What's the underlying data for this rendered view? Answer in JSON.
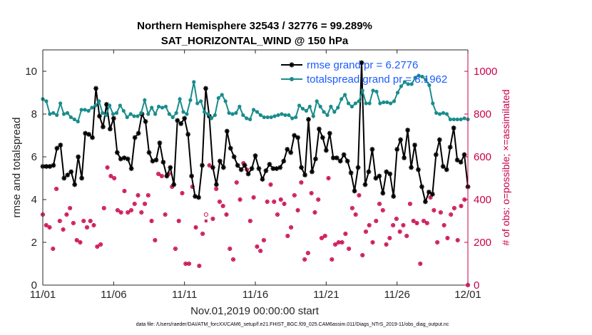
{
  "chart_data": {
    "type": "line",
    "title_line1": "Northern Hemisphere 32543 / 32776 = 99.289%",
    "title_line2": "SAT_HORIZONTAL_WIND @ 150 hPa",
    "xlabel": "Nov.01,2019 00:00:00 start",
    "ylabel_left": "rmse and totalspread",
    "ylabel_right": "# of obs: o=possible; ×=assimilated",
    "footnote": "data file: /Users/raeder/DAI/ATM_forcXX/CAM6_setup/f.e21.FHIST_BGC.f09_025.CAM6assim.011/Diags_NTrS_2019-11/obs_diag_output.nc",
    "x_ticks": [
      "11/01",
      "11/06",
      "11/11",
      "11/16",
      "11/21",
      "11/26",
      "12/01"
    ],
    "x_tick_days": [
      0,
      5,
      10,
      15,
      20,
      25,
      30
    ],
    "xlim": [
      0,
      30
    ],
    "ylim_left": [
      0,
      11
    ],
    "y_ticks_left": [
      "0",
      "2",
      "4",
      "6",
      "8",
      "10"
    ],
    "ylim_right": [
      0,
      1100
    ],
    "y_ticks_right": [
      "0",
      "200",
      "400",
      "600",
      "800",
      "1000"
    ],
    "series": [
      {
        "name": "rmse",
        "legend": "rmse grand pr = 6.2776",
        "color": "#000000",
        "axis": "left",
        "marker": "asterisk",
        "values": [
          5.55,
          5.55,
          5.55,
          5.6,
          6.4,
          6.55,
          5.0,
          5.15,
          5.3,
          4.7,
          6.0,
          5.0,
          7.1,
          7.05,
          6.9,
          9.2,
          7.9,
          7.4,
          8.45,
          7.3,
          7.8,
          6.2,
          5.9,
          5.95,
          5.9,
          5.45,
          6.9,
          7.1,
          8.0,
          7.65,
          6.2,
          5.8,
          5.85,
          6.65,
          5.75,
          5.1,
          5.5,
          4.7,
          7.7,
          7.55,
          7.8,
          7.05,
          5.1,
          4.15,
          4.1,
          5.6,
          9.2,
          7.9,
          5.5,
          4.7,
          5.8,
          5.5,
          7.2,
          6.4,
          6.0,
          5.6,
          5.4,
          5.6,
          5.2,
          5.45,
          6.05,
          5.45,
          4.95,
          5.35,
          5.65,
          5.45,
          5.45,
          5.5,
          5.8,
          6.35,
          6.2,
          7.0,
          6.9,
          5.5,
          5.15,
          7.75,
          5.3,
          5.9,
          7.3,
          6.9,
          6.3,
          7.1,
          5.95,
          5.95,
          5.8,
          6.1,
          5.8,
          5.25,
          4.4,
          5.5,
          10.4,
          4.7,
          5.3,
          6.35,
          5.0,
          5.1,
          4.3,
          5.3,
          5.2,
          4.15,
          6.35,
          6.8,
          5.95,
          7.25,
          5.5,
          6.55,
          5.4,
          4.6,
          3.9,
          4.35,
          4.25,
          6.1,
          6.8,
          5.55,
          5.4,
          6.45,
          7.35,
          5.85,
          5.75,
          6.1,
          4.6
        ]
      },
      {
        "name": "totalspread",
        "legend": "totalspread grand pr = 8.1962",
        "color": "#1a8c8c",
        "axis": "left",
        "marker": "dot",
        "values": [
          8.7,
          8.6,
          8.0,
          8.05,
          7.95,
          8.5,
          8.0,
          8.05,
          7.85,
          7.75,
          7.65,
          8.2,
          8.2,
          8.15,
          8.3,
          8.4,
          8.6,
          8.05,
          7.95,
          8.4,
          8.0,
          8.05,
          8.4,
          8.15,
          7.85,
          8.0,
          7.9,
          7.9,
          8.05,
          8.65,
          8.0,
          8.3,
          8.0,
          8.35,
          8.3,
          8.35,
          8.0,
          7.85,
          8.05,
          8.7,
          8.1,
          8.0,
          8.65,
          9.5,
          8.5,
          8.6,
          8.1,
          8.0,
          7.8,
          7.95,
          8.75,
          8.9,
          8.6,
          8.05,
          8.0,
          8.05,
          8.35,
          7.95,
          7.8,
          7.75,
          8.2,
          8.1,
          7.95,
          7.85,
          7.85,
          7.85,
          7.9,
          7.95,
          8.0,
          7.95,
          7.95,
          7.8,
          7.85,
          8.4,
          8.25,
          8.15,
          8.35,
          7.9,
          8.6,
          8.35,
          8.1,
          7.95,
          8.35,
          8.1,
          8.3,
          8.7,
          8.9,
          8.5,
          8.35,
          8.5,
          8.6,
          9.1,
          8.5,
          8.5,
          9.1,
          9.05,
          8.5,
          8.55,
          8.55,
          8.5,
          8.6,
          9.0,
          9.3,
          9.5,
          9.4,
          9.4,
          9.7,
          9.8,
          9.75,
          9.6,
          9.35,
          8.5,
          8.05,
          8.0,
          8.05,
          8.0,
          7.75,
          7.75,
          7.75,
          7.75,
          7.8,
          7.75
        ]
      },
      {
        "name": "obs_possible",
        "legend": "",
        "color": "#c8004a",
        "axis": "right",
        "marker": "circle",
        "values": [
          330,
          280,
          270,
          170,
          450,
          300,
          260,
          330,
          360,
          290,
          210,
          200,
          300,
          270,
          300,
          280,
          180,
          190,
          360,
          550,
          510,
          500,
          350,
          340,
          440,
          340,
          350,
          380,
          420,
          340,
          380,
          420,
          300,
          210,
          520,
          510,
          330,
          520,
          460,
          170,
          300,
          430,
          100,
          100,
          460,
          270,
          90,
          240,
          330,
          560,
          310,
          450,
          390,
          370,
          330,
          170,
          120,
          480,
          400,
          570,
          540,
          300,
          410,
          180,
          160,
          210,
          390,
          470,
          390,
          330,
          400,
          380,
          230,
          270,
          420,
          350,
          480,
          120,
          150,
          430,
          340,
          400,
          220,
          230,
          500,
          120,
          190,
          200,
          200,
          240,
          170,
          360,
          330,
          420,
          140,
          250,
          280,
          200,
          300,
          380,
          350,
          190,
          220,
          280,
          310,
          250,
          280,
          230,
          380,
          300,
          290,
          100,
          300,
          290,
          410,
          350,
          200,
          340,
          280,
          220,
          330,
          360,
          210,
          370,
          400,
          0
        ]
      },
      {
        "name": "obs_assimilated",
        "legend": "",
        "color": "#c8004a",
        "axis": "right",
        "marker": "asterisk",
        "values": [
          330,
          280,
          270,
          170,
          450,
          300,
          260,
          330,
          360,
          290,
          210,
          200,
          300,
          270,
          300,
          280,
          180,
          190,
          360,
          550,
          510,
          500,
          350,
          340,
          440,
          340,
          350,
          380,
          420,
          340,
          380,
          420,
          300,
          210,
          520,
          510,
          330,
          520,
          460,
          170,
          300,
          430,
          100,
          100,
          460,
          270,
          90,
          240,
          300,
          560,
          310,
          450,
          390,
          370,
          330,
          170,
          120,
          480,
          400,
          570,
          540,
          300,
          410,
          180,
          160,
          210,
          390,
          470,
          390,
          330,
          400,
          380,
          230,
          270,
          420,
          350,
          480,
          120,
          150,
          430,
          340,
          400,
          220,
          230,
          500,
          120,
          190,
          200,
          200,
          240,
          170,
          360,
          330,
          420,
          140,
          250,
          280,
          200,
          300,
          380,
          350,
          190,
          220,
          280,
          310,
          250,
          280,
          230,
          380,
          300,
          290,
          100,
          300,
          290,
          410,
          350,
          200,
          340,
          280,
          220,
          330,
          360,
          210,
          370,
          400,
          0
        ]
      }
    ]
  }
}
